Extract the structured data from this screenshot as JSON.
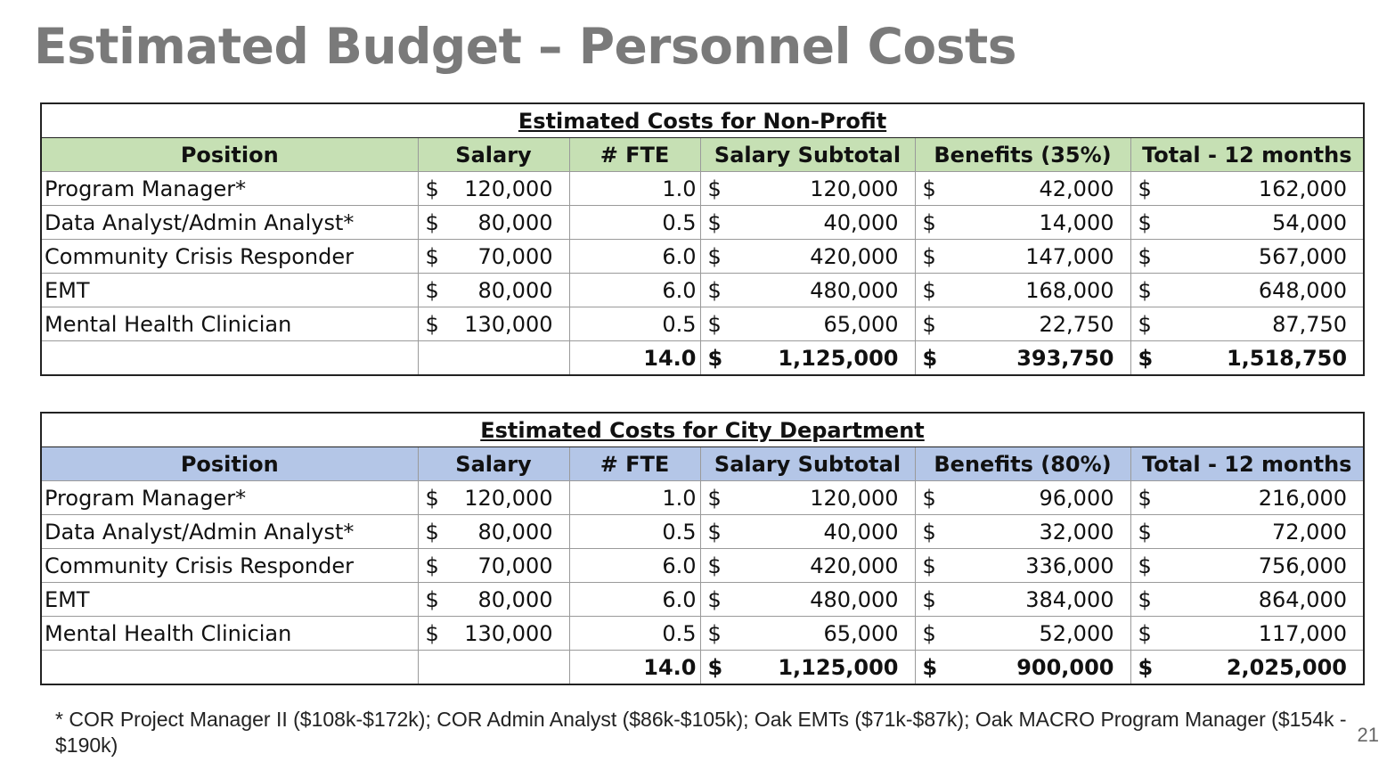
{
  "title": "Estimated Budget – Personnel Costs",
  "currency_symbol": "$",
  "tables": [
    {
      "caption": "Estimated Costs for Non-Profit",
      "header_color": "#c6e0b4",
      "headers": [
        "Position",
        "Salary",
        "# FTE",
        "Salary Subtotal",
        "Benefits (35%)",
        "Total - 12 months"
      ],
      "rows": [
        {
          "position": "Program Manager*",
          "salary": "120,000",
          "fte": "1.0",
          "subtotal": "120,000",
          "benefits": "42,000",
          "total": "162,000"
        },
        {
          "position": "Data Analyst/Admin Analyst*",
          "salary": "80,000",
          "fte": "0.5",
          "subtotal": "40,000",
          "benefits": "14,000",
          "total": "54,000"
        },
        {
          "position": "Community Crisis Responder",
          "salary": "70,000",
          "fte": "6.0",
          "subtotal": "420,000",
          "benefits": "147,000",
          "total": "567,000"
        },
        {
          "position": "EMT",
          "salary": "80,000",
          "fte": "6.0",
          "subtotal": "480,000",
          "benefits": "168,000",
          "total": "648,000"
        },
        {
          "position": "Mental Health Clinician",
          "salary": "130,000",
          "fte": "0.5",
          "subtotal": "65,000",
          "benefits": "22,750",
          "total": "87,750"
        }
      ],
      "totals": {
        "fte": "14.0",
        "subtotal": "1,125,000",
        "benefits": "393,750",
        "total": "1,518,750"
      }
    },
    {
      "caption": "Estimated Costs for City Department",
      "header_color": "#b4c6e7",
      "headers": [
        "Position",
        "Salary",
        "# FTE",
        "Salary Subtotal",
        "Benefits (80%)",
        "Total - 12 months"
      ],
      "rows": [
        {
          "position": "Program Manager*",
          "salary": "120,000",
          "fte": "1.0",
          "subtotal": "120,000",
          "benefits": "96,000",
          "total": "216,000"
        },
        {
          "position": "Data Analyst/Admin Analyst*",
          "salary": "80,000",
          "fte": "0.5",
          "subtotal": "40,000",
          "benefits": "32,000",
          "total": "72,000"
        },
        {
          "position": "Community Crisis Responder",
          "salary": "70,000",
          "fte": "6.0",
          "subtotal": "420,000",
          "benefits": "336,000",
          "total": "756,000"
        },
        {
          "position": "EMT",
          "salary": "80,000",
          "fte": "6.0",
          "subtotal": "480,000",
          "benefits": "384,000",
          "total": "864,000"
        },
        {
          "position": "Mental Health Clinician",
          "salary": "130,000",
          "fte": "0.5",
          "subtotal": "65,000",
          "benefits": "52,000",
          "total": "117,000"
        }
      ],
      "totals": {
        "fte": "14.0",
        "subtotal": "1,125,000",
        "benefits": "900,000",
        "total": "2,025,000"
      }
    }
  ],
  "footnote": "* COR Project Manager II ($108k-$172k); COR Admin Analyst ($86k-$105k); Oak EMTs ($71k-$87k); Oak MACRO Program Manager ($154k - $190k)",
  "page_number": "21"
}
